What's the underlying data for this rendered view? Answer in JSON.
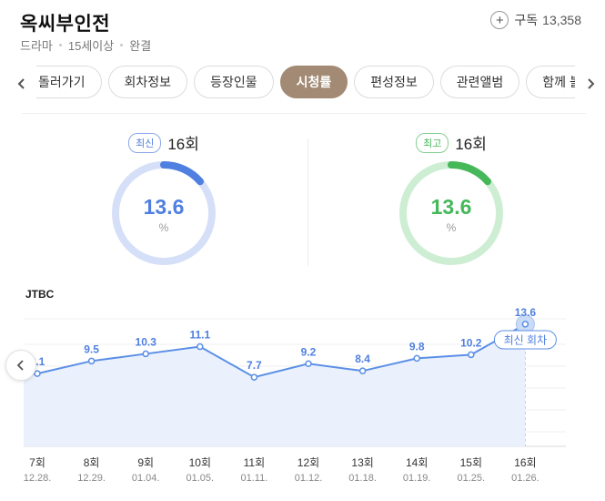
{
  "header": {
    "title": "옥씨부인전",
    "meta": [
      "드라마",
      "15세이상",
      "완결"
    ],
    "subscribe_label": "구독",
    "subscribe_count": "13,358"
  },
  "tabs": {
    "items": [
      "돌러가기",
      "회차정보",
      "등장인물",
      "시청률",
      "편성정보",
      "관련앨범",
      "함께 볼"
    ],
    "active_index": 3
  },
  "ratings": {
    "latest": {
      "badge": "최신",
      "episode": "16회",
      "value": "13.6",
      "unit": "%",
      "color": "#4f7fe0",
      "track_color": "#d5e0f8"
    },
    "best": {
      "badge": "최고",
      "episode": "16회",
      "value": "13.6",
      "unit": "%",
      "color": "#45b85a",
      "track_color": "#cdeed3"
    }
  },
  "chart_section": {
    "broadcaster": "JTBC",
    "latest_label": "최신 회차"
  },
  "chart_data": {
    "type": "area",
    "series": [
      {
        "values": [
          8.1,
          9.5,
          10.3,
          11.1,
          7.7,
          9.2,
          8.4,
          9.8,
          10.2,
          13.6
        ]
      }
    ],
    "categories": [
      "7회",
      "8회",
      "9회",
      "10회",
      "11회",
      "12회",
      "13회",
      "14회",
      "15회",
      "16회"
    ],
    "dates": [
      "12.28.",
      "12.29.",
      "01.04.",
      "01.05.",
      "01.11.",
      "01.12.",
      "01.18.",
      "01.19.",
      "01.25.",
      "01.26."
    ],
    "line_color": "#5b8fe6",
    "fill_color": "#eaf1fd",
    "grid": true
  }
}
